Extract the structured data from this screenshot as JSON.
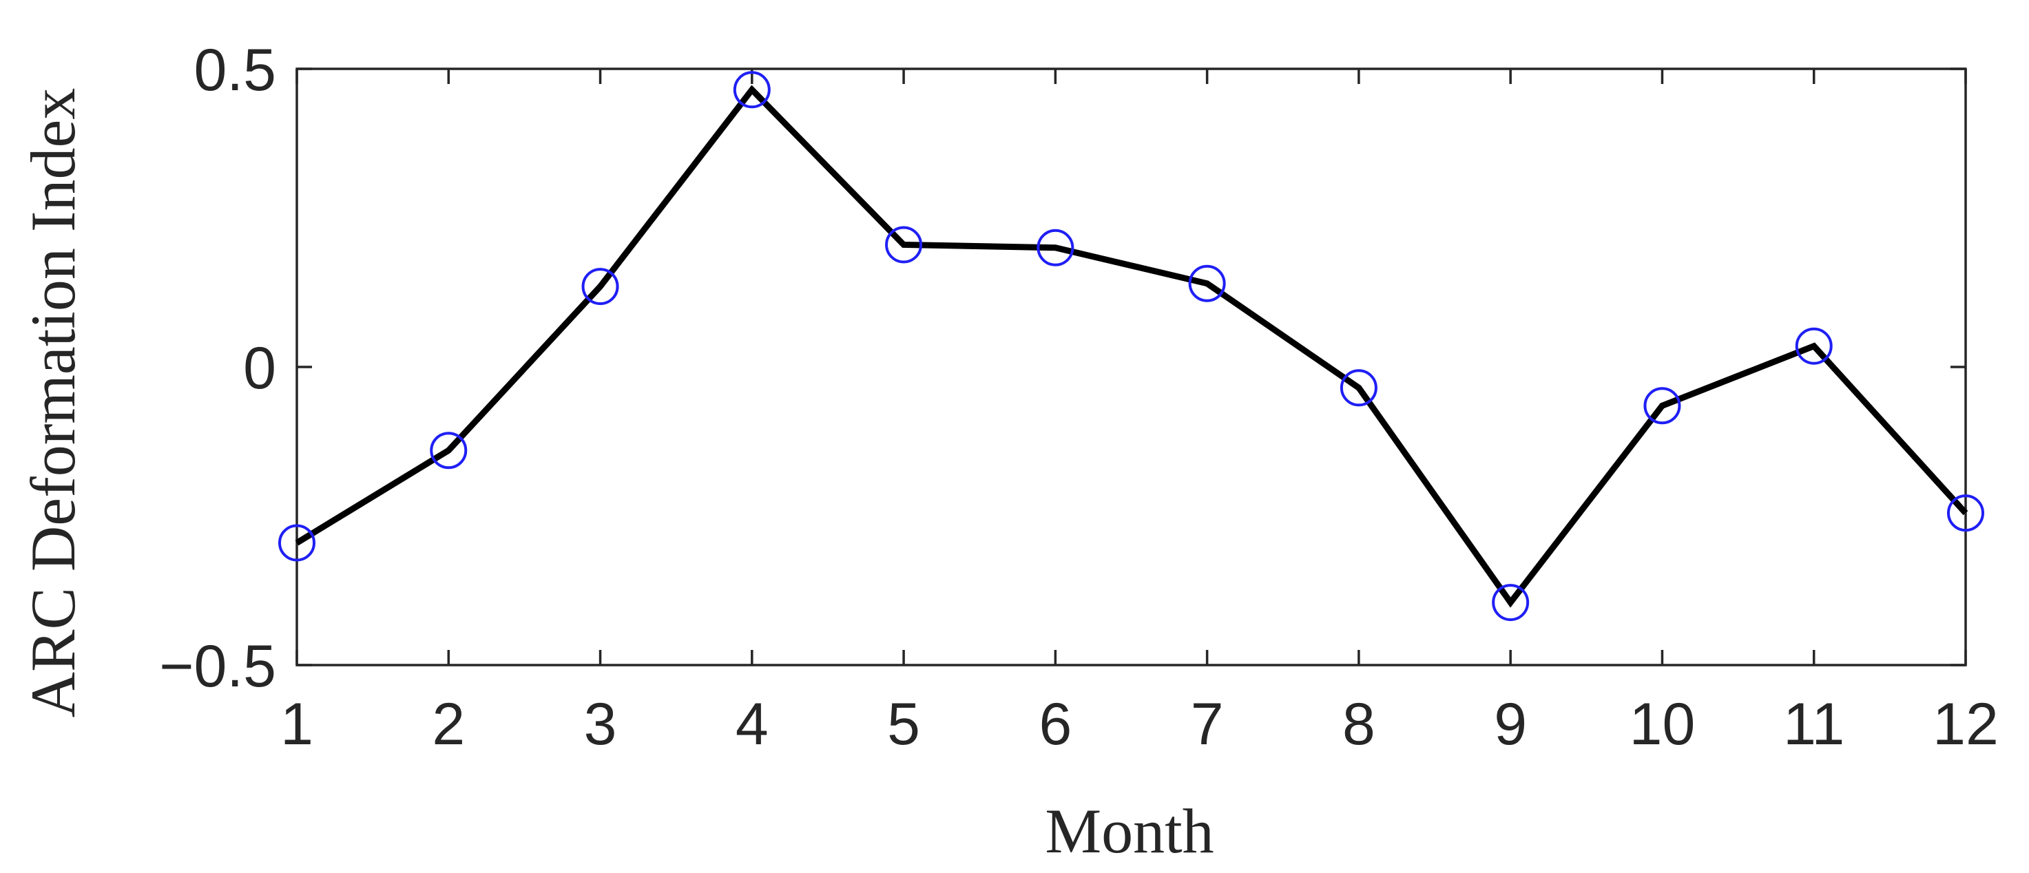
{
  "chart_data": {
    "type": "line",
    "title": "",
    "xlabel": "Month",
    "ylabel": "ARC Deformation Index",
    "x": [
      1,
      2,
      3,
      4,
      5,
      6,
      7,
      8,
      9,
      10,
      11,
      12
    ],
    "xticks": [
      "1",
      "2",
      "3",
      "4",
      "5",
      "6",
      "7",
      "8",
      "9",
      "10",
      "11",
      "12"
    ],
    "xlim": [
      1,
      12
    ],
    "ylim": [
      -0.5,
      0.5
    ],
    "yticks": [
      0.5,
      0,
      -0.5
    ],
    "ytick_labels": [
      "0.5",
      "0",
      "−0.5"
    ],
    "grid": false,
    "series": [
      {
        "values": [
          -0.295,
          -0.14,
          0.135,
          0.465,
          0.205,
          0.2,
          0.14,
          -0.035,
          -0.395,
          -0.065,
          0.035,
          -0.245
        ],
        "line_color": "#000000",
        "marker": "circle",
        "marker_color": "#1f1ff5"
      }
    ]
  }
}
